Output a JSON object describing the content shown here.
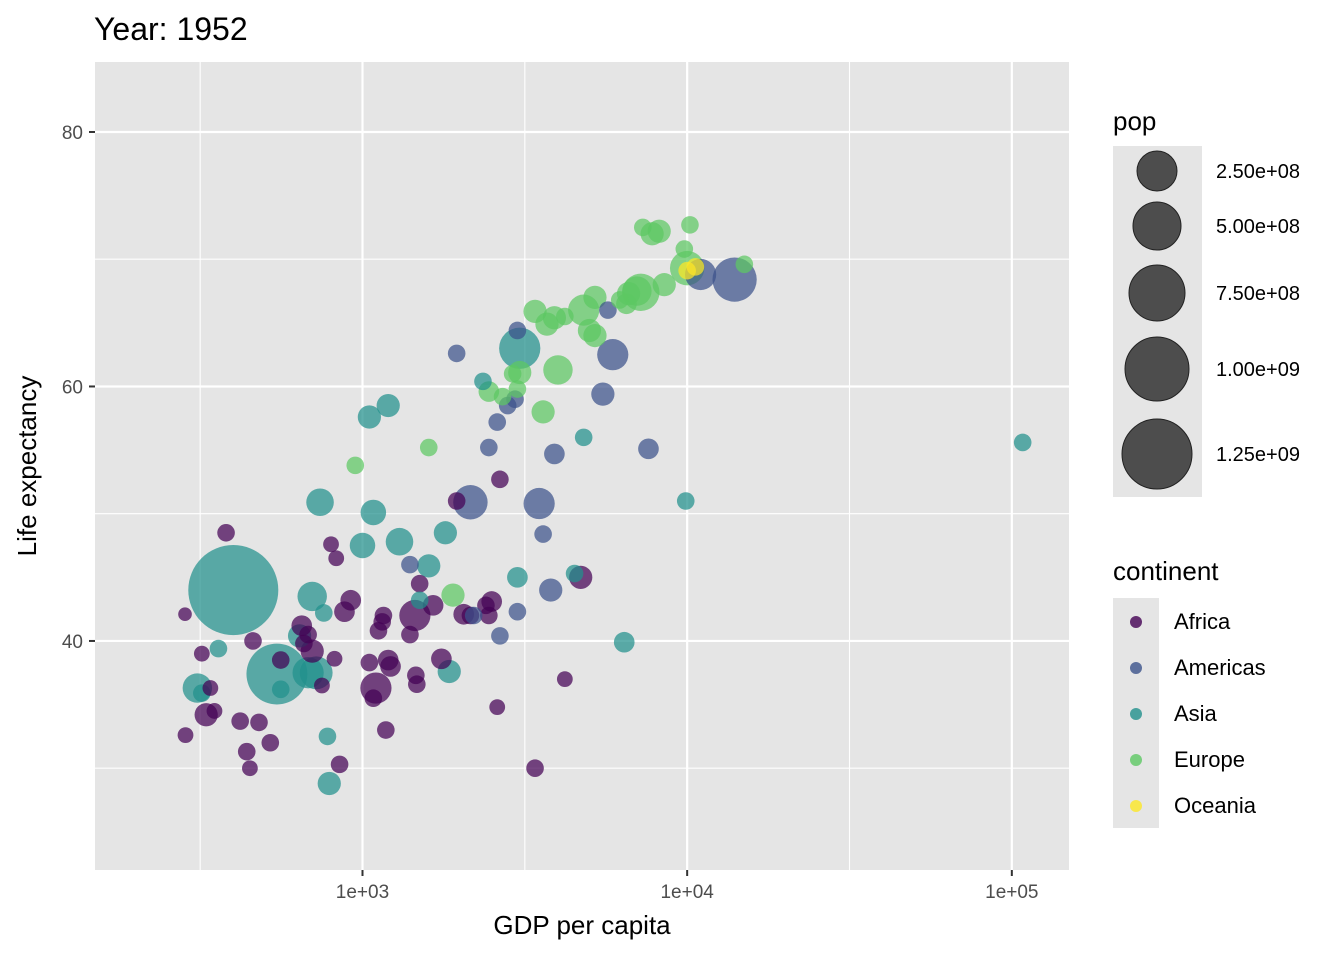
{
  "chart_data": {
    "type": "scatter",
    "title": "Year: 1952",
    "xlabel": "GDP per capita",
    "ylabel": "Life expectancy",
    "x_scale": "log10",
    "xlim": [
      150,
      150000
    ],
    "ylim": [
      22,
      85.5
    ],
    "x_ticks": [
      {
        "value": 1000,
        "label": "1e+03"
      },
      {
        "value": 10000,
        "label": "1e+04"
      },
      {
        "value": 100000,
        "label": "1e+05"
      }
    ],
    "y_ticks": [
      {
        "value": 40,
        "label": "40"
      },
      {
        "value": 60,
        "label": "60"
      },
      {
        "value": 80,
        "label": "80"
      }
    ],
    "grid": true,
    "legend_position": "right",
    "colors": {
      "Africa": "#440154",
      "Americas": "#3B528B",
      "Asia": "#21908C",
      "Europe": "#5DC863",
      "Oceania": "#FDE725",
      "panel_bg": "#E5E5E5",
      "grid": "#FFFFFF",
      "legend_bubble": "#333333"
    },
    "size_legend": {
      "title": "pop",
      "entries": [
        {
          "value": 250000000,
          "label": "2.50e+08"
        },
        {
          "value": 500000000,
          "label": "5.00e+08"
        },
        {
          "value": 750000000,
          "label": "7.50e+08"
        },
        {
          "value": 1000000000,
          "label": "1.00e+09"
        },
        {
          "value": 1250000000,
          "label": "1.25e+09"
        }
      ]
    },
    "color_legend": {
      "title": "continent",
      "entries": [
        "Africa",
        "Americas",
        "Asia",
        "Europe",
        "Oceania"
      ]
    },
    "series": [
      {
        "name": "Africa",
        "points": [
          [
            284,
            42.1,
            2
          ],
          [
            320,
            39.0,
            3
          ],
          [
            340,
            36.3,
            3
          ],
          [
            350,
            34.5,
            3
          ],
          [
            285,
            32.6,
            3
          ],
          [
            330,
            34.2,
            8
          ],
          [
            380,
            48.5,
            4
          ],
          [
            420,
            33.7,
            4
          ],
          [
            460,
            40.0,
            4
          ],
          [
            480,
            33.6,
            4
          ],
          [
            440,
            31.3,
            4
          ],
          [
            450,
            30.0,
            3
          ],
          [
            520,
            32.0,
            4
          ],
          [
            560,
            38.5,
            4
          ],
          [
            650,
            41.2,
            6
          ],
          [
            680,
            40.5,
            4
          ],
          [
            700,
            39.2,
            8
          ],
          [
            660,
            39.8,
            4
          ],
          [
            750,
            36.5,
            3
          ],
          [
            820,
            38.6,
            3
          ],
          [
            800,
            47.6,
            3
          ],
          [
            830,
            46.5,
            3
          ],
          [
            850,
            30.3,
            4
          ],
          [
            880,
            42.3,
            6
          ],
          [
            920,
            43.2,
            6
          ],
          [
            1050,
            38.3,
            4
          ],
          [
            1080,
            35.5,
            4
          ],
          [
            1100,
            36.3,
            16
          ],
          [
            1120,
            40.8,
            4
          ],
          [
            1150,
            41.5,
            4
          ],
          [
            1180,
            33.0,
            4
          ],
          [
            1160,
            42.0,
            4
          ],
          [
            1200,
            38.5,
            6
          ],
          [
            1220,
            38.0,
            6
          ],
          [
            1400,
            40.5,
            4
          ],
          [
            1450,
            42.0,
            16
          ],
          [
            1460,
            37.3,
            4
          ],
          [
            1470,
            36.6,
            4
          ],
          [
            1500,
            44.5,
            4
          ],
          [
            1650,
            42.8,
            6
          ],
          [
            1750,
            38.6,
            6
          ],
          [
            1950,
            51.0,
            4
          ],
          [
            2050,
            42.1,
            6
          ],
          [
            2150,
            42.0,
            4
          ],
          [
            2400,
            42.8,
            4
          ],
          [
            2450,
            42.0,
            4
          ],
          [
            2500,
            43.1,
            6
          ],
          [
            2600,
            34.8,
            3
          ],
          [
            2650,
            52.7,
            4
          ],
          [
            3400,
            30.0,
            4
          ],
          [
            4200,
            37.0,
            3
          ],
          [
            4700,
            45.0,
            8
          ]
        ]
      },
      {
        "name": "Americas",
        "points": [
          [
            1400,
            46.0,
            4
          ],
          [
            1950,
            62.6,
            4
          ],
          [
            2150,
            50.9,
            20
          ],
          [
            2200,
            42.0,
            4
          ],
          [
            2450,
            55.2,
            4
          ],
          [
            2600,
            57.2,
            4
          ],
          [
            2650,
            40.4,
            4
          ],
          [
            2800,
            58.5,
            4
          ],
          [
            2950,
            59.0,
            4
          ],
          [
            3000,
            64.4,
            4
          ],
          [
            3000,
            42.3,
            4
          ],
          [
            3500,
            50.8,
            16
          ],
          [
            3600,
            48.4,
            4
          ],
          [
            3800,
            44.0,
            8
          ],
          [
            3900,
            54.7,
            6
          ],
          [
            5500,
            59.4,
            8
          ],
          [
            5700,
            66.0,
            4
          ],
          [
            5900,
            62.5,
            16
          ],
          [
            7600,
            55.1,
            6
          ],
          [
            11000,
            68.8,
            16
          ],
          [
            14000,
            68.4,
            35
          ]
        ]
      },
      {
        "name": "Asia",
        "points": [
          [
            310,
            36.3,
            14
          ],
          [
            320,
            35.9,
            4
          ],
          [
            360,
            39.4,
            4
          ],
          [
            400,
            44.0,
            160
          ],
          [
            545,
            37.4,
            70
          ],
          [
            560,
            36.2,
            4
          ],
          [
            640,
            40.4,
            8
          ],
          [
            680,
            37.5,
            16
          ],
          [
            700,
            43.5,
            14
          ],
          [
            720,
            37.5,
            18
          ],
          [
            740,
            50.9,
            12
          ],
          [
            760,
            42.2,
            4
          ],
          [
            780,
            32.5,
            4
          ],
          [
            790,
            28.8,
            8
          ],
          [
            1000,
            47.5,
            10
          ],
          [
            1050,
            57.6,
            8
          ],
          [
            1080,
            50.1,
            10
          ],
          [
            1200,
            58.5,
            8
          ],
          [
            1300,
            47.8,
            12
          ],
          [
            1500,
            43.2,
            4
          ],
          [
            1600,
            45.9,
            8
          ],
          [
            1800,
            48.5,
            8
          ],
          [
            1850,
            37.6,
            8
          ],
          [
            2350,
            60.4,
            4
          ],
          [
            3000,
            45.0,
            6
          ],
          [
            3050,
            63.0,
            30
          ],
          [
            4500,
            45.3,
            4
          ],
          [
            4800,
            56.0,
            4
          ],
          [
            6400,
            39.9,
            6
          ],
          [
            9900,
            51.0,
            4
          ],
          [
            108000,
            55.6,
            4
          ]
        ]
      },
      {
        "name": "Europe",
        "points": [
          [
            1600,
            55.2,
            4
          ],
          [
            950,
            53.8,
            4
          ],
          [
            1900,
            43.6,
            8
          ],
          [
            2450,
            59.6,
            6
          ],
          [
            2700,
            59.2,
            4
          ],
          [
            2900,
            61.0,
            4
          ],
          [
            3050,
            61.1,
            8
          ],
          [
            3000,
            59.8,
            4
          ],
          [
            3700,
            64.9,
            8
          ],
          [
            3400,
            65.9,
            8
          ],
          [
            3900,
            65.4,
            8
          ],
          [
            4200,
            65.5,
            4
          ],
          [
            3600,
            58.0,
            8
          ],
          [
            4000,
            61.3,
            14
          ],
          [
            4800,
            66.0,
            16
          ],
          [
            5000,
            64.4,
            8
          ],
          [
            5200,
            64.0,
            8
          ],
          [
            5200,
            67.0,
            8
          ],
          [
            6200,
            66.8,
            4
          ],
          [
            6600,
            67.3,
            8
          ],
          [
            6500,
            66.5,
            6
          ],
          [
            7000,
            67.5,
            14
          ],
          [
            7200,
            67.4,
            24
          ],
          [
            7300,
            72.5,
            4
          ],
          [
            7800,
            72.0,
            8
          ],
          [
            8200,
            72.2,
            8
          ],
          [
            8500,
            68.0,
            8
          ],
          [
            9800,
            70.8,
            4
          ],
          [
            10200,
            72.7,
            4
          ],
          [
            10000,
            69.3,
            20
          ],
          [
            15000,
            69.6,
            4
          ]
        ]
      },
      {
        "name": "Oceania",
        "points": [
          [
            10000,
            69.1,
            4
          ],
          [
            10600,
            69.4,
            4
          ]
        ]
      }
    ]
  }
}
